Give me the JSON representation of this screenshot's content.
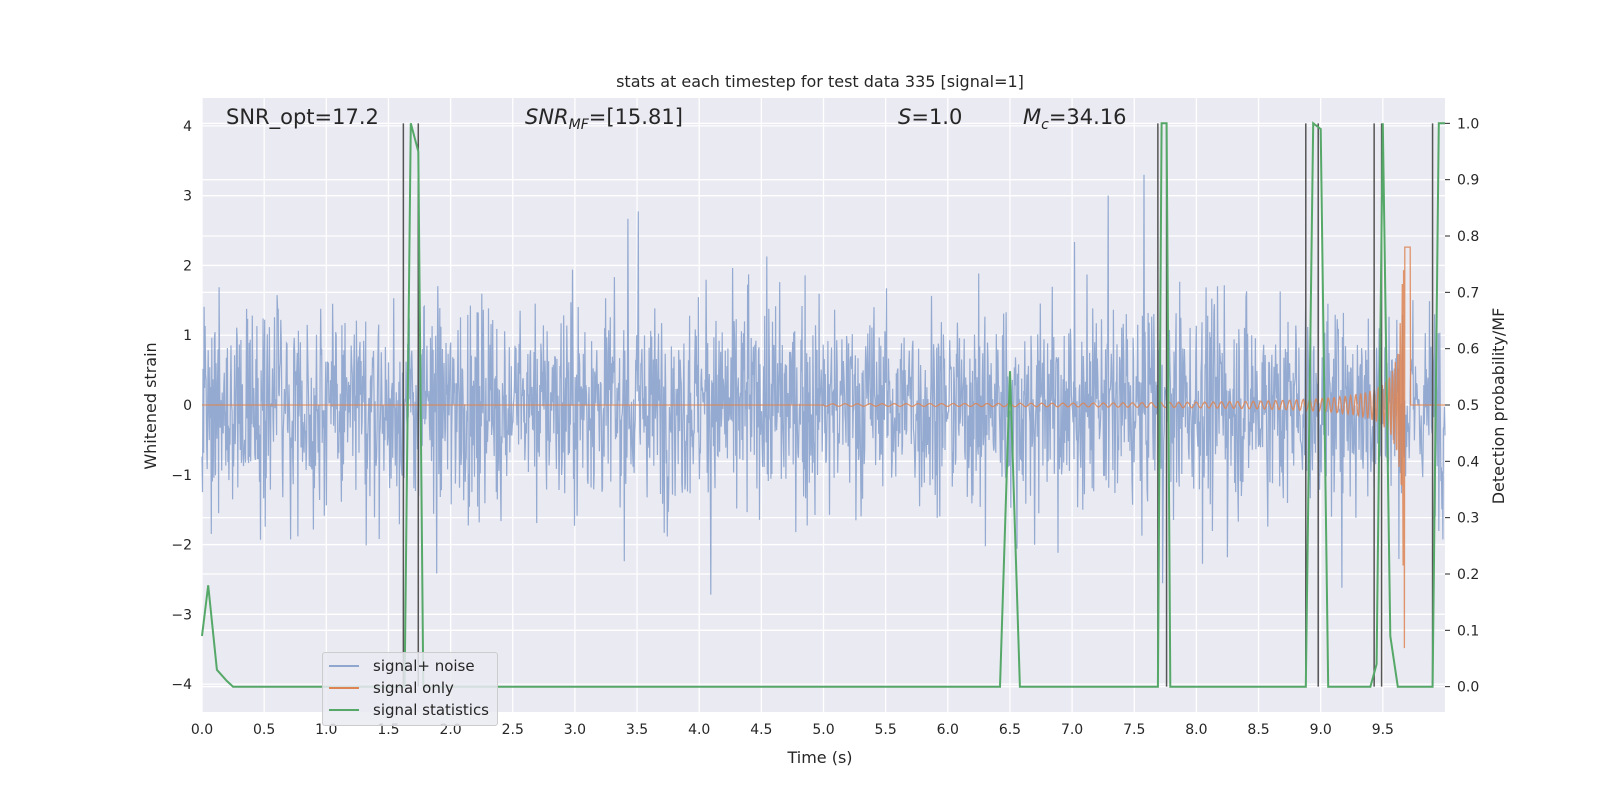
{
  "chart_data": {
    "type": "line",
    "title": "stats at each timestep for test data 335 [signal=1]",
    "xlabel": "Time (s)",
    "ylabel": "Whitened strain",
    "y2label": "Detection probability/MF",
    "xlim": [
      0.0,
      10.0
    ],
    "ylim": [
      -4.4,
      4.4
    ],
    "y2lim": [
      -0.045,
      1.045
    ],
    "xticks": [
      "0.0",
      "0.5",
      "1.0",
      "1.5",
      "2.0",
      "2.5",
      "3.0",
      "3.5",
      "4.0",
      "4.5",
      "5.0",
      "5.5",
      "6.0",
      "6.5",
      "7.0",
      "7.5",
      "8.0",
      "8.5",
      "9.0",
      "9.5"
    ],
    "yticks": [
      "4",
      "3",
      "2",
      "1",
      "0",
      "−1",
      "−2",
      "−3",
      "−4"
    ],
    "y2ticks": [
      "1.0",
      "0.9",
      "0.8",
      "0.7",
      "0.6",
      "0.5",
      "0.4",
      "0.3",
      "0.2",
      "0.1",
      "0.0"
    ],
    "grid": true,
    "legend_placement": "lower-left",
    "annotations": {
      "snr_opt": "SNR_opt=17.2",
      "snr_mf_base": "SNR",
      "snr_mf_sub": "MF",
      "snr_mf_value": "=[15.81]",
      "s_base": "S",
      "s_value": "=1.0",
      "mc_base": "M",
      "mc_sub": "c",
      "mc_value": "=34.16"
    },
    "colors": {
      "noise": "#8fa6cf",
      "signal": "#dd8452",
      "stats": "#55a868",
      "vline": "#555555",
      "axes_bg": "#eaeaf2",
      "grid": "#ffffff"
    },
    "series": [
      {
        "name": "signal+ noise",
        "description_of_shape": "dense noise band approx -1.6 to 1.7 with peaks to about ±3",
        "band_low": -1.6,
        "band_high": 1.7
      },
      {
        "name": "signal only",
        "chirp_start": 5.0,
        "chirp_peak_time": 9.68,
        "chirp_peak_amp": 3.5
      },
      {
        "name": "signal statistics",
        "x": [
          0.0,
          0.05,
          0.12,
          0.2,
          0.25,
          0.3,
          1.6,
          1.63,
          1.68,
          1.74,
          1.78,
          2.0,
          6.3,
          6.42,
          6.5,
          6.58,
          6.7,
          7.65,
          7.69,
          7.72,
          7.76,
          7.79,
          7.85,
          8.85,
          8.88,
          8.94,
          9.0,
          9.06,
          9.12,
          9.4,
          9.45,
          9.5,
          9.56,
          9.62,
          9.65,
          9.9,
          9.95,
          10.0
        ],
        "y": [
          0.09,
          0.18,
          0.03,
          0.01,
          0.0,
          0.0,
          0.0,
          0.0,
          1.0,
          0.95,
          0.0,
          0.0,
          0.0,
          0.0,
          0.56,
          0.0,
          0.0,
          0.0,
          0.0,
          1.0,
          1.0,
          0.0,
          0.0,
          0.0,
          0.0,
          1.0,
          0.99,
          0.0,
          0.0,
          0.0,
          0.04,
          1.0,
          0.09,
          0.0,
          0.0,
          0.0,
          1.0,
          1.0
        ]
      }
    ],
    "vlines": [
      1.62,
      1.74,
      7.69,
      7.76,
      8.88,
      8.98,
      9.43,
      9.49,
      9.9
    ]
  }
}
